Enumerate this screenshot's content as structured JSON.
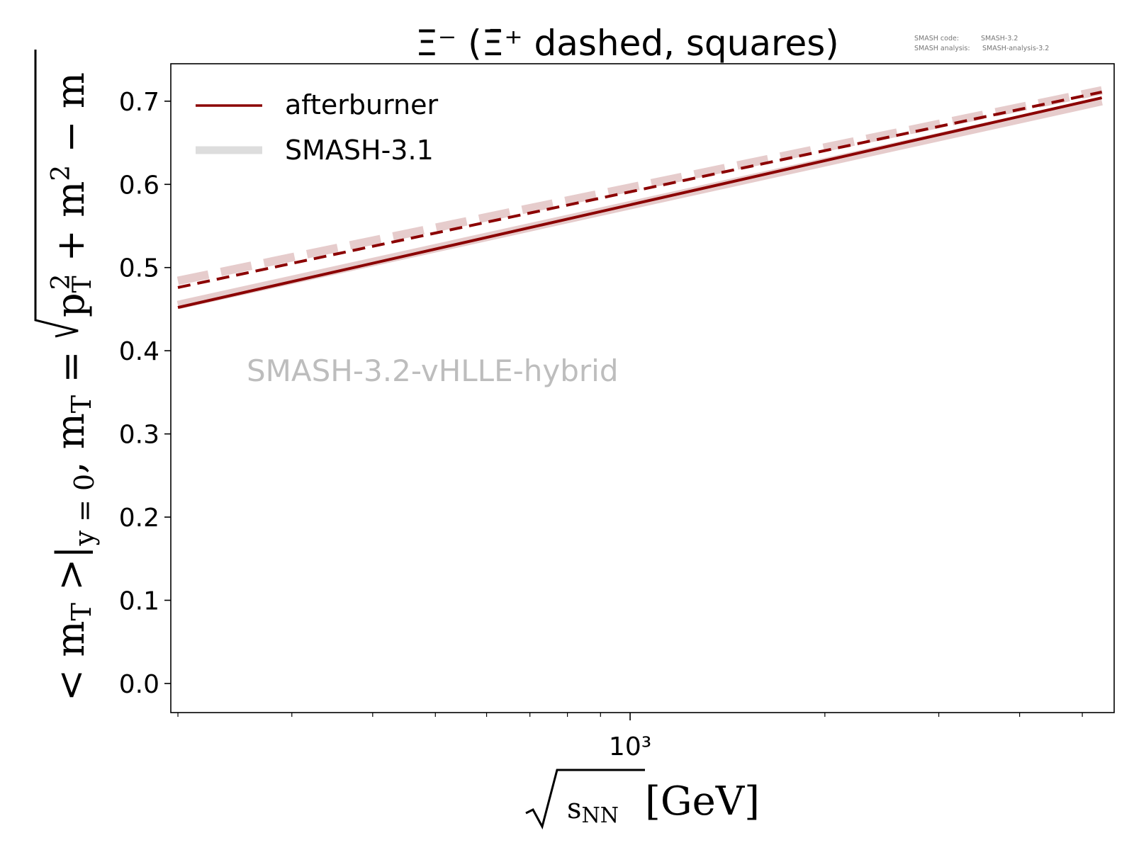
{
  "title": "Ξ⁻ (Ξ̄⁺ dashed, squares)",
  "meta": {
    "code_label": "SMASH code:",
    "code_value": "SMASH-3.2",
    "analysis_label": "SMASH analysis:",
    "analysis_value": "SMASH-analysis-3.2"
  },
  "watermark": "SMASH-3.2-vHLLE-hybrid",
  "legend": {
    "entries": [
      {
        "label": "afterburner",
        "color": "#8b0000",
        "style": "solid"
      },
      {
        "label": "SMASH-3.1",
        "color": "#dddddd",
        "style": "thick"
      }
    ]
  },
  "ylabel": "<m_T>|_{y=0}, m_T = √(p_T² + m²) − m",
  "xlabel": "√s_NN [GeV]",
  "xtick_major": "10³",
  "colors": {
    "current": "#8b0000",
    "reference": "#e6cccc",
    "legend_reference": "#dddddd"
  },
  "chart_data": {
    "type": "line",
    "title": "Ξ⁻ (Ξ̄⁺ dashed, squares)",
    "xscale": "log",
    "xlim": [
      195,
      5600
    ],
    "ylim": [
      -0.035,
      0.745
    ],
    "yticks": [
      0.0,
      0.1,
      0.2,
      0.3,
      0.4,
      0.5,
      0.6,
      0.7
    ],
    "xlabel": "√s_NN [GeV]",
    "ylabel": "<m_T>|_{y=0}, m_T = √(p_T² + m²) − m",
    "legend_position": "top-left",
    "series": [
      {
        "name": "afterburner",
        "particle": "Ξ⁻",
        "style": "solid",
        "color": "#8b0000",
        "x": [
          200,
          5360
        ],
        "y": [
          0.452,
          0.704
        ]
      },
      {
        "name": "afterburner",
        "particle": "Ξ̄⁺",
        "style": "dashed",
        "color": "#8b0000",
        "x": [
          200,
          5360
        ],
        "y": [
          0.476,
          0.711
        ]
      },
      {
        "name": "SMASH-3.1",
        "particle": "Ξ⁻",
        "style": "solid",
        "color": "#e6cccc",
        "x": [
          200,
          5360
        ],
        "y": [
          0.455,
          0.7
        ]
      },
      {
        "name": "SMASH-3.1",
        "particle": "Ξ̄⁺",
        "style": "dashed",
        "color": "#e6cccc",
        "x": [
          200,
          5360
        ],
        "y": [
          0.484,
          0.713
        ]
      }
    ]
  }
}
